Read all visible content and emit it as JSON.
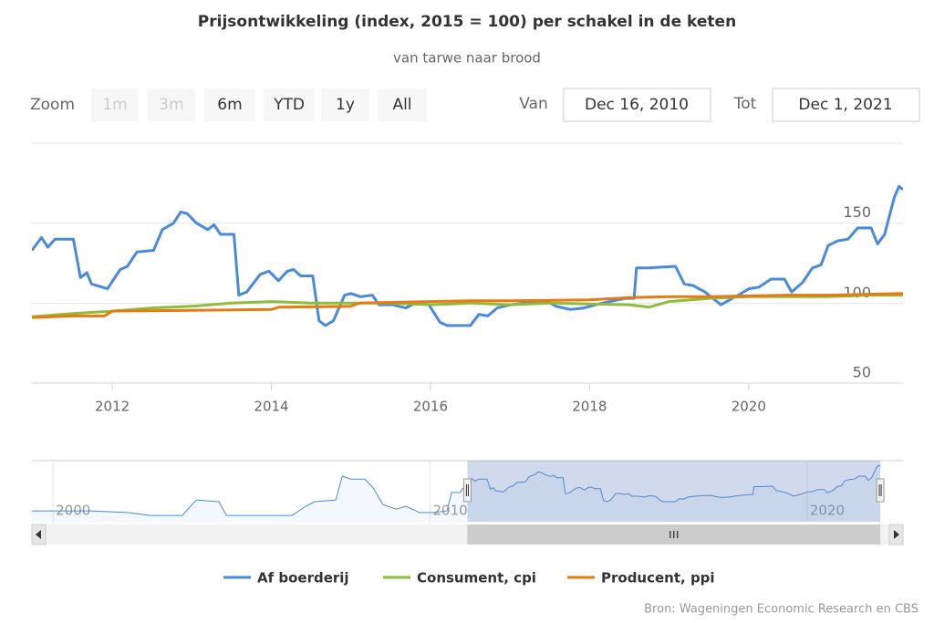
{
  "chart_data": {
    "type": "line",
    "title": "Prijsontwikkeling (index, 2015 = 100) per schakel in de keten",
    "subtitle": "van tarwe naar brood",
    "range_selector": {
      "label": "Zoom",
      "buttons": [
        {
          "text": "1m",
          "enabled": false
        },
        {
          "text": "3m",
          "enabled": false
        },
        {
          "text": "6m",
          "enabled": true
        },
        {
          "text": "YTD",
          "enabled": true
        },
        {
          "text": "1y",
          "enabled": true
        },
        {
          "text": "All",
          "enabled": true
        }
      ],
      "from_label": "Van",
      "from": "Dec 16, 2010",
      "to_label": "Tot",
      "to": "Dec 1, 2021"
    },
    "xlim": [
      2010.99,
      2021.94
    ],
    "ylim": [
      50,
      200
    ],
    "xticks": [
      2012,
      2014,
      2016,
      2018,
      2020
    ],
    "yticks": [
      50,
      100,
      150
    ],
    "grid": true,
    "series": [
      {
        "name": "Af boerderij",
        "color": "#4a8ad8",
        "x": [
          2010.99,
          2011.11,
          2011.19,
          2011.28,
          2011.51,
          2011.6,
          2011.68,
          2011.74,
          2011.94,
          2012.1,
          2012.19,
          2012.31,
          2012.52,
          2012.63,
          2012.77,
          2012.86,
          2012.94,
          2013.06,
          2013.2,
          2013.28,
          2013.36,
          2013.53,
          2013.59,
          2013.69,
          2013.86,
          2013.97,
          2014.09,
          2014.2,
          2014.28,
          2014.37,
          2014.52,
          2014.6,
          2014.68,
          2014.78,
          2014.92,
          2015.0,
          2015.12,
          2015.27,
          2015.35,
          2015.52,
          2015.69,
          2015.81,
          2015.98,
          2016.12,
          2016.21,
          2016.32,
          2016.5,
          2016.61,
          2016.72,
          2016.84,
          2017.01,
          2017.18,
          2017.47,
          2017.58,
          2017.76,
          2017.93,
          2018.16,
          2018.45,
          2018.56,
          2018.59,
          2018.73,
          2019.08,
          2019.19,
          2019.3,
          2019.45,
          2019.65,
          2019.76,
          2019.87,
          2020.0,
          2020.13,
          2020.28,
          2020.45,
          2020.54,
          2020.68,
          2020.8,
          2020.91,
          2021.0,
          2021.12,
          2021.25,
          2021.37,
          2021.54,
          2021.62,
          2021.71,
          2021.83,
          2021.89,
          2021.94
        ],
        "values": [
          133,
          141,
          135,
          140,
          140,
          116,
          119,
          112,
          109,
          121,
          123,
          132,
          133,
          146,
          150,
          157,
          156,
          150,
          146,
          149,
          143,
          143,
          105,
          107,
          118,
          120,
          114,
          120,
          121,
          117,
          117,
          89,
          86,
          89,
          105,
          106,
          104,
          105,
          99,
          99,
          97,
          100,
          99,
          88,
          86,
          86,
          86,
          93,
          92,
          97,
          99,
          100,
          101,
          98,
          96,
          97,
          100,
          103,
          103,
          122,
          122,
          123,
          112,
          111,
          107,
          99,
          102,
          105,
          109,
          110,
          115,
          115,
          107,
          113,
          122,
          124,
          136,
          139,
          140,
          147,
          147,
          137,
          143,
          166,
          173,
          171
        ]
      },
      {
        "name": "Consument, cpi",
        "color": "#8dbd3a",
        "x": [
          2010.99,
          2011.5,
          2012.0,
          2012.5,
          2013.0,
          2013.5,
          2014.0,
          2014.5,
          2015.0,
          2015.5,
          2016.0,
          2016.5,
          2017.0,
          2017.5,
          2018.0,
          2018.5,
          2018.75,
          2019.0,
          2019.5,
          2020.0,
          2020.5,
          2021.0,
          2021.5,
          2021.94
        ],
        "values": [
          91.5,
          93.5,
          95,
          97,
          98,
          100,
          101,
          100,
          100,
          100,
          99,
          100,
          99,
          100,
          99.5,
          99,
          97.5,
          101,
          103,
          104,
          104,
          104,
          105,
          105
        ]
      },
      {
        "name": "Producent, ppi",
        "color": "#e67a14",
        "x": [
          2010.99,
          2011.5,
          2011.9,
          2012.0,
          2013.0,
          2014.0,
          2014.1,
          2015.0,
          2015.1,
          2016.0,
          2016.5,
          2017.0,
          2018.0,
          2018.5,
          2019.0,
          2019.5,
          2020.0,
          2020.5,
          2021.0,
          2021.94
        ],
        "values": [
          91,
          92,
          92,
          95,
          95.5,
          96,
          97.5,
          98,
          100,
          101,
          101.5,
          101.5,
          102,
          103.5,
          104,
          104,
          104.5,
          105,
          105,
          106
        ]
      }
    ],
    "navigator": {
      "xlim": [
        1999.44,
        2022.18
      ],
      "ylim": [
        38,
        184
      ],
      "xticks": [
        2000,
        2010,
        2020
      ],
      "x": [
        1999.44,
        2001.02,
        2001.98,
        2002.59,
        2003.43,
        2003.8,
        2004.4,
        2004.6,
        2006.34,
        2006.7,
        2006.94,
        2007.5,
        2007.67,
        2007.9,
        2008.27,
        2008.5,
        2008.75,
        2009.1,
        2009.36,
        2009.72,
        2010.08,
        2010.45,
        2010.57,
        2010.8
      ],
      "values": [
        64,
        64,
        60,
        53,
        53,
        90,
        86,
        53,
        53,
        75,
        86,
        90,
        147,
        140,
        140,
        118,
        79,
        68,
        75,
        60,
        60,
        64,
        108,
        108
      ]
    },
    "legend": "bottom",
    "source": "Bron: Wageningen Economic Research en CBS"
  }
}
